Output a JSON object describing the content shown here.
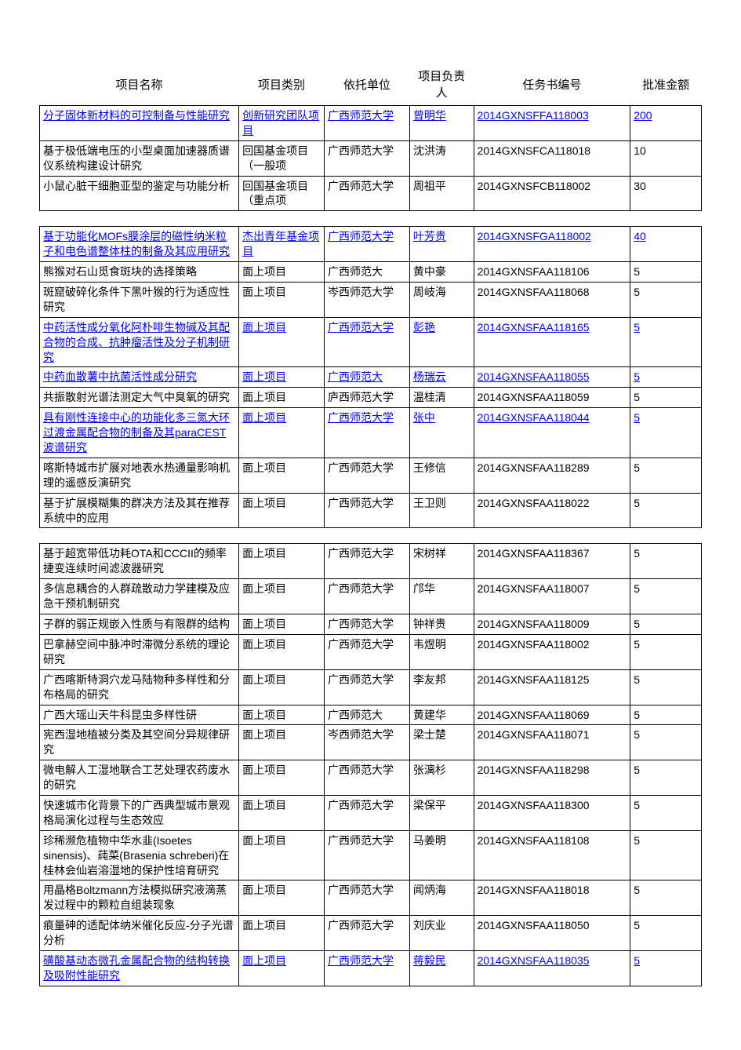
{
  "headers": {
    "name": "项目名称",
    "category": "项目类别",
    "unit": "依托单位",
    "leader": "项目负责人",
    "taskno": "任务书编号",
    "amount": "批准金额"
  },
  "groups": [
    {
      "rows": [
        {
          "name": "分子固体新材料的可控制备与性能研究",
          "category": "创新研究团队项目",
          "unit": "广西师范大学",
          "leader": "曾明华",
          "taskno": "2014GXNSFFA118003",
          "amount": "200",
          "link": true
        },
        {
          "name": "基于极低端电压的小型桌面加速器质谱仪系统构建设计研究",
          "category": "回国基金项目（一般项",
          "unit": "广西师范大学",
          "leader": "沈洪涛",
          "taskno": "2014GXNSFCA118018",
          "amount": "10",
          "link": false
        },
        {
          "name": "小鼠心脏干细胞亚型的鉴定与功能分析",
          "category": "回国基金项目（重点项",
          "unit": "广西师范大学",
          "leader": "周祖平",
          "taskno": "2014GXNSFCB118002",
          "amount": "30",
          "link": false
        }
      ]
    },
    {
      "rows": [
        {
          "name": "基于功能化MOFs膜涂层的磁性纳米粒子和电色谱整体柱的制备及其应用研究",
          "category": "杰出青年基金项目",
          "unit": "广西师范大学",
          "leader": "叶芳贵",
          "taskno": "2014GXNSFGA118002",
          "amount": "40",
          "link": true
        },
        {
          "name": "熊猴对石山觅食斑块的选择策略",
          "category": "面上项目",
          "unit": "广西师范大",
          "leader": "黄中豪",
          "taskno": "2014GXNSFAA118106",
          "amount": "5",
          "link": false
        },
        {
          "name": "斑窟破碎化条件下黑叶猴的行为适应性研究",
          "category": "面上项目",
          "unit": "岑西师范大学",
          "leader": "周岐海",
          "taskno": "2014GXNSFAA118068",
          "amount": "5",
          "link": false
        },
        {
          "name": "中药活性成分氧化阿朴啡生物碱及其配合物的合成、抗肿瘤活性及分子机制研究",
          "category": "面上项目",
          "unit": "广西师范大学",
          "leader": "彭艳",
          "taskno": "2014GXNSFAA118165",
          "amount": "5",
          "link": true
        },
        {
          "name": "中药血散薯中抗菌活性成分研究",
          "category": "面上项目",
          "unit": "广西师范大",
          "leader": "杨瑞云",
          "taskno": "2014GXNSFAA118055",
          "amount": "5",
          "link": true
        },
        {
          "name": "共振散射光谱法测定大气中臭氧的研究",
          "category": "面上项目",
          "unit": "庐西师范大学",
          "leader": "温桂清",
          "taskno": "2014GXNSFAA118059",
          "amount": "5",
          "link": false
        },
        {
          "name": "具有刚性连接中心的功能化多三氮大环过渡金属配合物的制备及其paraCEST波谱研究",
          "category": "面上项目",
          "unit": "广西师范大学",
          "leader": "张中",
          "taskno": "2014GXNSFAA118044",
          "amount": "5",
          "link": true
        },
        {
          "name": "喀斯特城市扩展对地表水热通量影响机理的遥感反演研究",
          "category": "面上项目",
          "unit": "广西师范大学",
          "leader": "王修信",
          "taskno": "2014GXNSFAA118289",
          "amount": "5",
          "link": false
        },
        {
          "name": "基于扩展模糊集的群决方法及其在推荐系统中的应用",
          "category": "面上项目",
          "unit": "广西师范大学",
          "leader": "王卫则",
          "taskno": "2014GXNSFAA118022",
          "amount": "5",
          "link": false
        }
      ]
    },
    {
      "rows": [
        {
          "name": "基于超宽带低功耗OTA和CCCII的频率捷变连续时间滤波器研究",
          "category": "面上项目",
          "unit": "广西师范大学",
          "leader": "宋树祥",
          "taskno": "2014GXNSFAA118367",
          "amount": "5",
          "link": false
        },
        {
          "name": "多信息耦合的人群疏散动力学建模及应急干预机制研究",
          "category": "面上项目",
          "unit": "广西师范大学",
          "leader": "邝华",
          "taskno": "2014GXNSFAA118007",
          "amount": "5",
          "link": false
        },
        {
          "name": "子群的弱正规嵌入性质与有限群的结构",
          "category": "面上项目",
          "unit": "广西师范大学",
          "leader": "钟祥贵",
          "taskno": "2014GXNSFAA118009",
          "amount": "5",
          "link": false
        },
        {
          "name": "巴拿赫空间中脉冲时滞微分系统的理论研究",
          "category": "面上项目",
          "unit": "广西师范大学",
          "leader": "韦煜明",
          "taskno": "2014GXNSFAA118002",
          "amount": "5",
          "link": false
        },
        {
          "name": "广西喀斯特洞穴龙马陆物种多样性和分布格局的研究",
          "category": "面上项目",
          "unit": "广西师范大学",
          "leader": "李友邦",
          "taskno": "2014GXNSFAA118125",
          "amount": "5",
          "link": false
        },
        {
          "name": "广西大瑶山天牛科昆虫多样性研",
          "category": "面上项目",
          "unit": "广西师范大",
          "leader": "黄建华",
          "taskno": "2014GXNSFAA118069",
          "amount": "5",
          "link": false
        },
        {
          "name": "宪西湿地植被分类及其空间分异规律研究",
          "category": "面上项目",
          "unit": "岑西师范大学",
          "leader": "梁士楚",
          "taskno": "2014GXNSFAA118071",
          "amount": "5",
          "link": false
        },
        {
          "name": "微电解人工湿地联合工艺处理农药废水的研究",
          "category": "面上项目",
          "unit": "广西师范大学",
          "leader": "张漓杉",
          "taskno": "2014GXNSFAA118298",
          "amount": "5",
          "link": false
        },
        {
          "name": "快速城市化背景下的广西典型城市景观格局演化过程与生态效应",
          "category": "面上项目",
          "unit": "广西师范大学",
          "leader": "梁保平",
          "taskno": "2014GXNSFAA118300",
          "amount": "5",
          "link": false
        },
        {
          "name": "珍稀濒危植物中华水韭(Isoetes sinensis)、莼菜(Brasenia schreberi)在桂林会仙岩溶湿地的保护性培育研究",
          "category": "面上项目",
          "unit": "广西师范大学",
          "leader": "马姜明",
          "taskno": "2014GXNSFAA118108",
          "amount": "5",
          "link": false
        },
        {
          "name": "用晶格Boltzmann方法模拟研究液滴蒸发过程中的颗粒自组装现象",
          "category": "面上项目",
          "unit": "广西师范大学",
          "leader": "闻炳海",
          "taskno": "2014GXNSFAA118018",
          "amount": "5",
          "link": false
        },
        {
          "name": "痕量砷的适配体纳米催化反应-分子光谱分析",
          "category": "面上项目",
          "unit": "广西师范大学",
          "leader": "刘庆业",
          "taskno": "2014GXNSFAA118050",
          "amount": "5",
          "link": false
        },
        {
          "name": "磺酸基动态微孔金属配合物的结构转换及吸附性能研究",
          "category": "面上项目",
          "unit": "广西师范大学",
          "leader": "蒋毅民",
          "taskno": "2014GXNSFAA118035",
          "amount": "5",
          "link": true
        }
      ]
    }
  ]
}
